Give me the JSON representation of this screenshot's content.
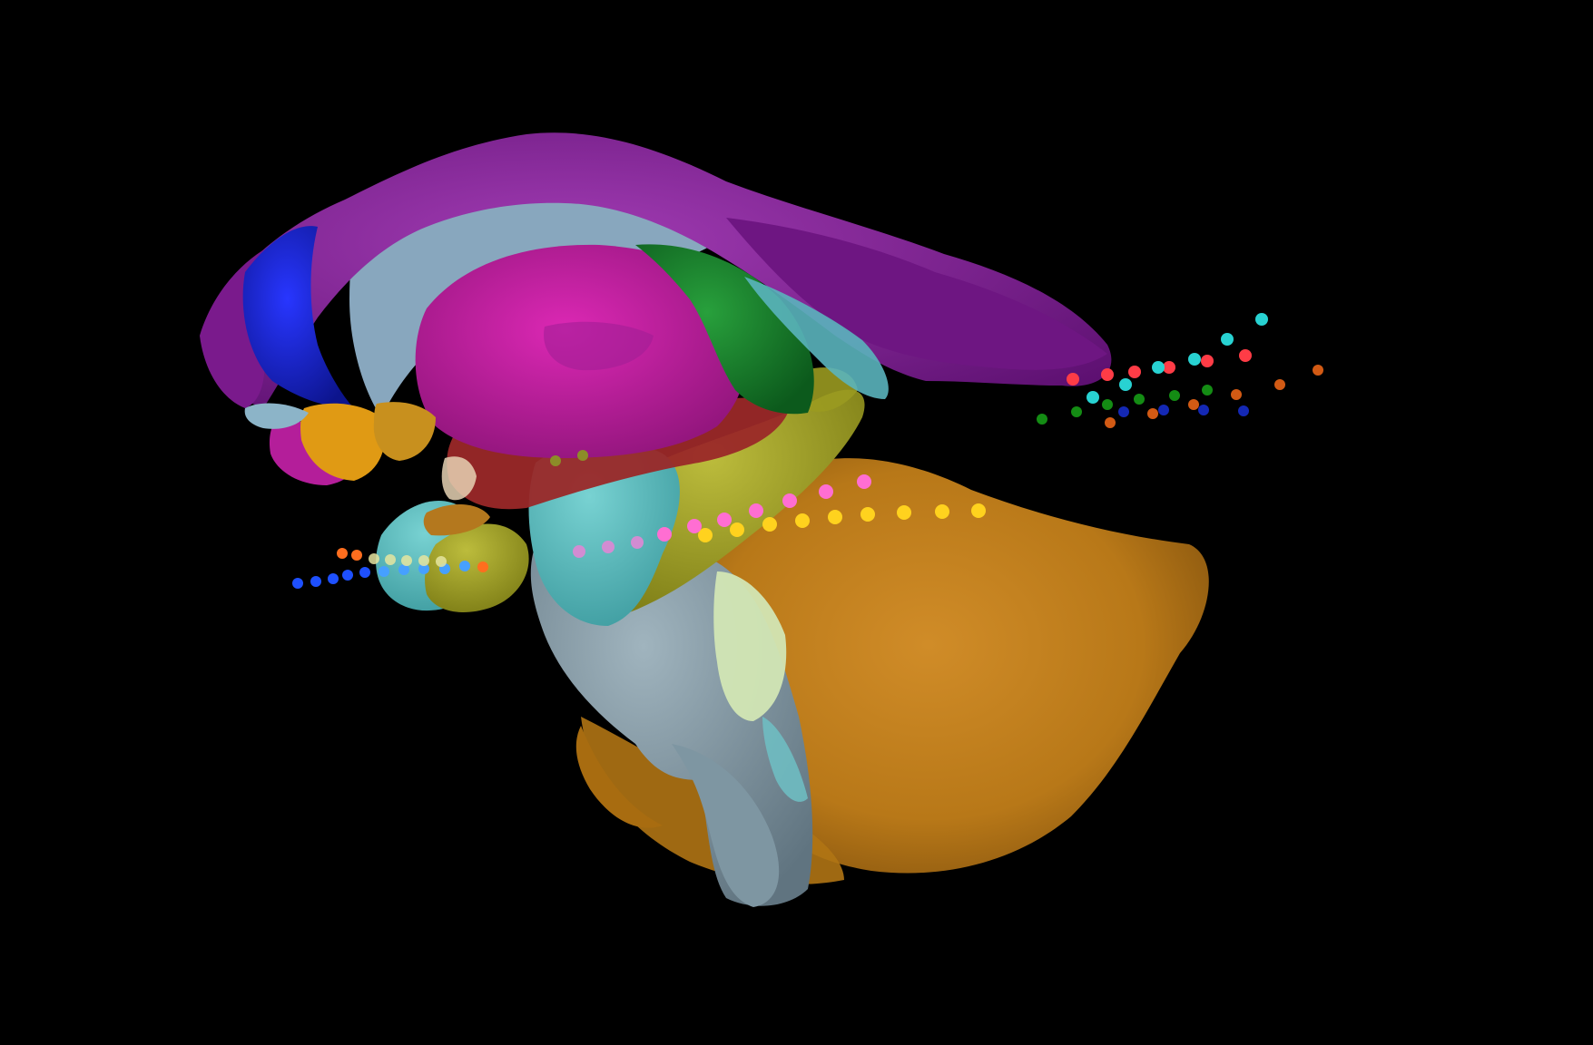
{
  "scene": {
    "background": "#000000",
    "description_colors": {
      "cerebellum_orange": "#c8841e",
      "brainstem_grey": "#8fa5b0",
      "cortex_purple": "#8a1e9a",
      "striatum_magenta": "#c81eaa",
      "white_matter_lightblue": "#8fb0c8",
      "thalamus_green": "#1e8a32",
      "olfactory_blue": "#1e28d2",
      "hippocampus_cyan": "#5ac8c8",
      "midbrain_olive": "#a0a028",
      "hypothalamus_red": "#9a2828"
    }
  },
  "probe_tracks": {
    "yellow": "#ffd21e",
    "pink": "#ff6ed2",
    "light_pink": "#d28cd2",
    "blue": "#1e50ff",
    "light_blue": "#46a0ff",
    "orange": "#ff6e1e",
    "pale_yellow": "#e6e6a0",
    "red": "#ff3c46",
    "cyan": "#28d2d2",
    "dark_green": "#148c14",
    "dark_blue": "#1428b4",
    "brown_orange": "#d25a14"
  }
}
